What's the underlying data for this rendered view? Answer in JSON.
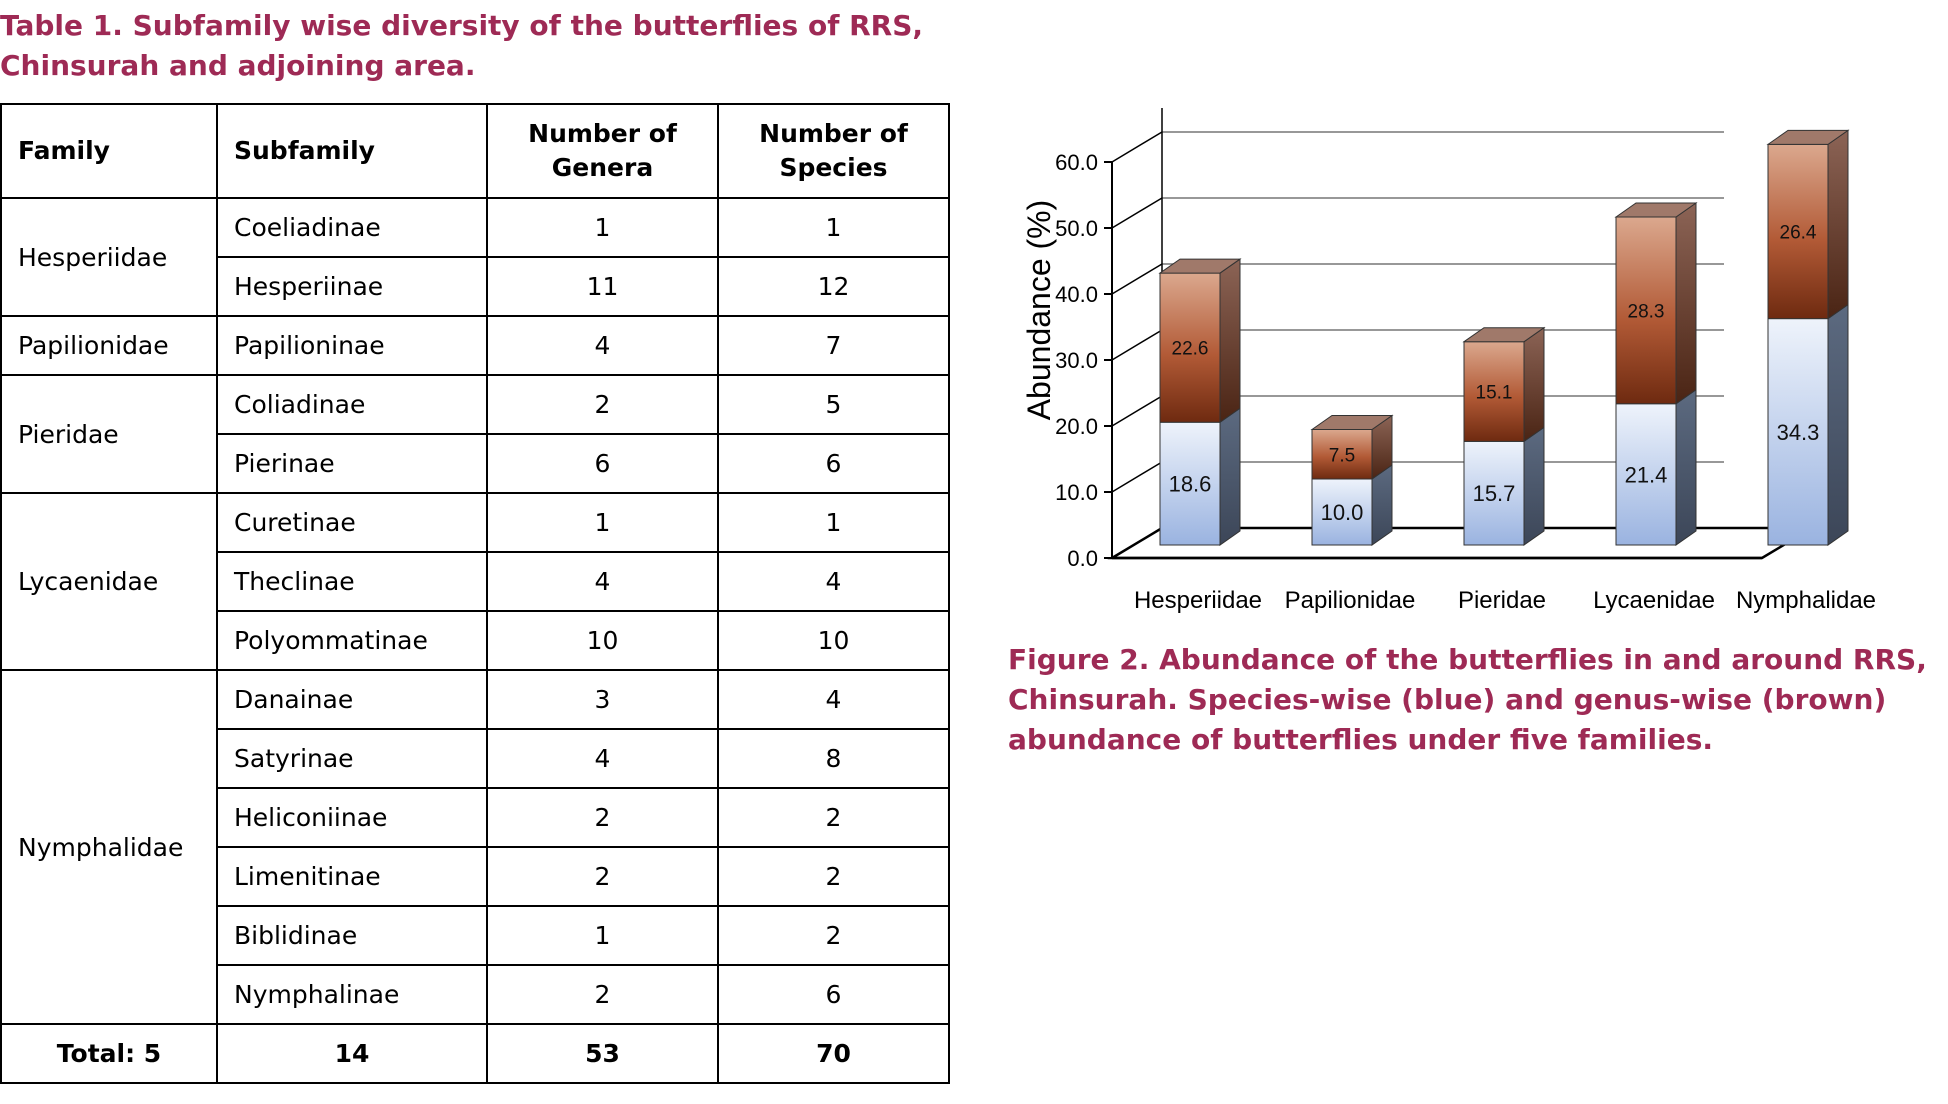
{
  "table": {
    "caption": "Table 1. Subfamily wise diversity of the butterflies of RRS, Chinsurah and adjoining area.",
    "headers": {
      "family": "Family",
      "subfamily": "Subfamily",
      "genera_1": "Number of",
      "genera_2": "Genera",
      "species_1": "Number of",
      "species_2": "Species"
    },
    "rows": [
      {
        "family": "Hesperiidae",
        "subfamily": "Coeliadinae",
        "genera": "1",
        "species": "1"
      },
      {
        "family": "",
        "subfamily": "Hesperiinae",
        "genera": "11",
        "species": "12"
      },
      {
        "family": "Papilionidae",
        "subfamily": "Papilioninae",
        "genera": "4",
        "species": "7"
      },
      {
        "family": "Pieridae",
        "subfamily": "Coliadinae",
        "genera": "2",
        "species": "5"
      },
      {
        "family": "",
        "subfamily": "Pierinae",
        "genera": "6",
        "species": "6"
      },
      {
        "family": "Lycaenidae",
        "subfamily": "Curetinae",
        "genera": "1",
        "species": "1"
      },
      {
        "family": "",
        "subfamily": "Theclinae",
        "genera": "4",
        "species": "4"
      },
      {
        "family": "",
        "subfamily": "Polyommatinae",
        "genera": "10",
        "species": "10"
      },
      {
        "family": "Nymphalidae",
        "subfamily": "Danainae",
        "genera": "3",
        "species": "4"
      },
      {
        "family": "",
        "subfamily": "Satyrinae",
        "genera": "4",
        "species": "8"
      },
      {
        "family": "",
        "subfamily": "Heliconiinae",
        "genera": "2",
        "species": "2"
      },
      {
        "family": "",
        "subfamily": "Limenitinae",
        "genera": "2",
        "species": "2"
      },
      {
        "family": "",
        "subfamily": "Biblidinae",
        "genera": "1",
        "species": "2"
      },
      {
        "family": "",
        "subfamily": "Nymphalinae",
        "genera": "2",
        "species": "6"
      }
    ],
    "total": {
      "family": "Total: 5",
      "subfamily": "14",
      "genera": "53",
      "species": "70"
    }
  },
  "figure": {
    "caption": "Figure 2. Abundance of the butterflies in and around RRS, Chinsurah. Species-wise (blue) and genus-wise (brown) abundance of butterflies under five families."
  },
  "chart_data": {
    "type": "bar",
    "stacked": true,
    "style": "3d",
    "categories": [
      "Hesperiidae",
      "Papilionidae",
      "Pieridae",
      "Lycaenidae",
      "Nymphalidae"
    ],
    "series": [
      {
        "values": [
          18.6,
          10.0,
          15.7,
          21.4,
          34.3
        ],
        "color": "#c9d8ef"
      },
      {
        "values": [
          22.6,
          7.5,
          15.1,
          28.3,
          26.4
        ],
        "color": "#b45a36"
      }
    ],
    "data_labels": {
      "bottom": [
        "18.6",
        "10.0",
        "15.7",
        "21.4",
        "34.3"
      ],
      "top": [
        "22.6",
        "7.5",
        "15.1",
        "28.3",
        "26.4"
      ]
    },
    "title": "",
    "xlabel": "",
    "ylabel": "Abundance (%)",
    "ylim": [
      0,
      60
    ],
    "yticks": [
      "0.0",
      "10.0",
      "20.0",
      "30.0",
      "40.0",
      "50.0",
      "60.0"
    ],
    "grid": true,
    "legend": "none"
  }
}
